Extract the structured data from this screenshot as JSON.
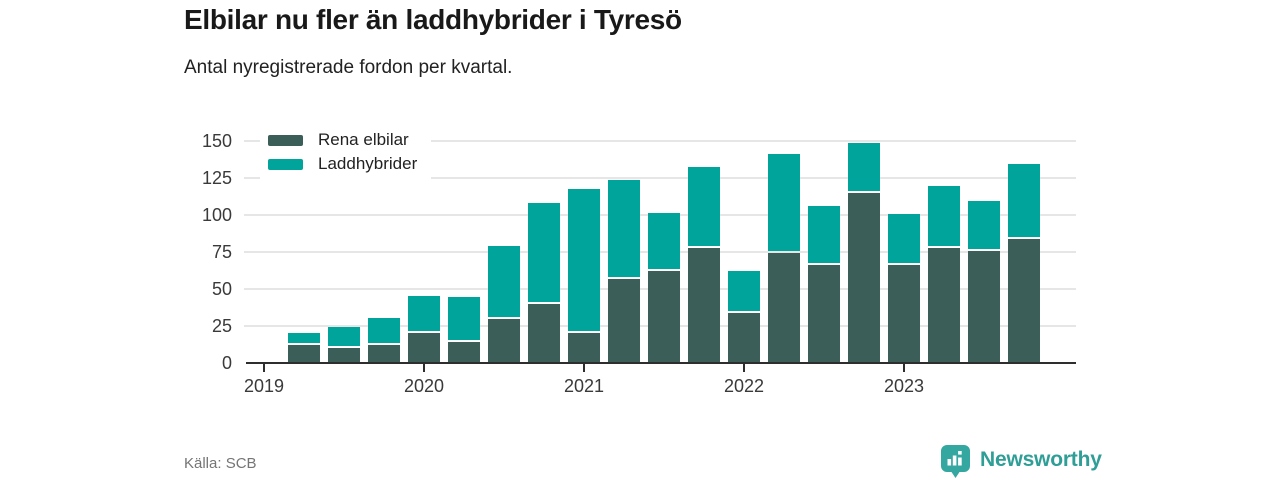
{
  "header": {
    "title": "Elbilar nu fler än laddhybrider i Tyresö",
    "subtitle": "Antal nyregistrerade fordon per kvartal."
  },
  "chart_data": {
    "type": "bar",
    "stacked": true,
    "title": "Elbilar nu fler än laddhybrider i Tyresö",
    "subtitle": "Antal nyregistrerade fordon per kvartal.",
    "ylabel": "",
    "xlabel": "",
    "ylim": [
      0,
      150
    ],
    "yticks": [
      0,
      25,
      50,
      75,
      100,
      125,
      150
    ],
    "grid": "horizontal",
    "legend_position": "top-left",
    "series": [
      {
        "name": "Rena elbilar",
        "color": "#3b5f58"
      },
      {
        "name": "Laddhybrider",
        "color": "#00a49b"
      }
    ],
    "xticks": [
      {
        "label": "2019",
        "year": 2019
      },
      {
        "label": "2020",
        "year": 2020
      },
      {
        "label": "2021",
        "year": 2021
      },
      {
        "label": "2022",
        "year": 2022
      },
      {
        "label": "2023",
        "year": 2023
      }
    ],
    "points": [
      {
        "year": 2019,
        "quarter": 2,
        "values": [
          12,
          7
        ]
      },
      {
        "year": 2019,
        "quarter": 3,
        "values": [
          10,
          13
        ]
      },
      {
        "year": 2019,
        "quarter": 4,
        "values": [
          12,
          17
        ]
      },
      {
        "year": 2020,
        "quarter": 1,
        "values": [
          20,
          24
        ]
      },
      {
        "year": 2020,
        "quarter": 2,
        "values": [
          14,
          29
        ]
      },
      {
        "year": 2020,
        "quarter": 3,
        "values": [
          30,
          48
        ]
      },
      {
        "year": 2020,
        "quarter": 4,
        "values": [
          40,
          67
        ]
      },
      {
        "year": 2021,
        "quarter": 1,
        "values": [
          20,
          96
        ]
      },
      {
        "year": 2021,
        "quarter": 2,
        "values": [
          57,
          65
        ]
      },
      {
        "year": 2021,
        "quarter": 3,
        "values": [
          62,
          38
        ]
      },
      {
        "year": 2021,
        "quarter": 4,
        "values": [
          78,
          53
        ]
      },
      {
        "year": 2022,
        "quarter": 1,
        "values": [
          34,
          27
        ]
      },
      {
        "year": 2022,
        "quarter": 2,
        "values": [
          74,
          66
        ]
      },
      {
        "year": 2022,
        "quarter": 3,
        "values": [
          66,
          39
        ]
      },
      {
        "year": 2022,
        "quarter": 4,
        "values": [
          115,
          32
        ]
      },
      {
        "year": 2023,
        "quarter": 1,
        "values": [
          66,
          33
        ]
      },
      {
        "year": 2023,
        "quarter": 2,
        "values": [
          78,
          40
        ]
      },
      {
        "year": 2023,
        "quarter": 3,
        "values": [
          76,
          32
        ]
      },
      {
        "year": 2023,
        "quarter": 4,
        "values": [
          84,
          49
        ]
      }
    ]
  },
  "footer": {
    "source": "Källa: SCB",
    "brand": "Newsworthy",
    "brand_color": "#2f9e96",
    "badge_color": "#35a7a1",
    "badge_icon": "bar-chart-pin-icon"
  }
}
